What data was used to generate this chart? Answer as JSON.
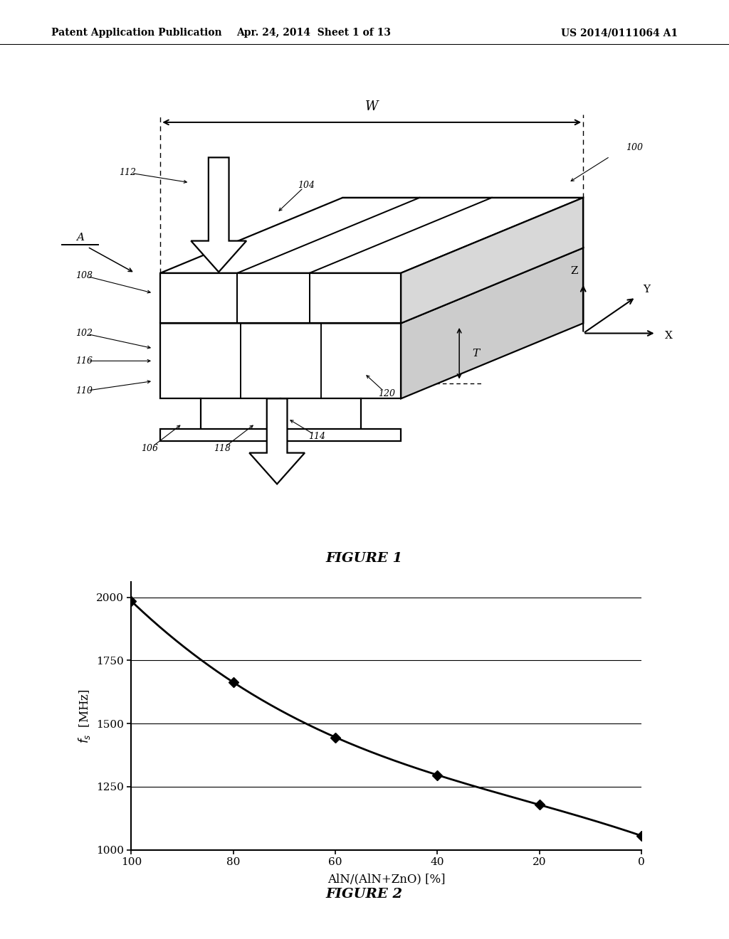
{
  "header_left": "Patent Application Publication",
  "header_center": "Apr. 24, 2014  Sheet 1 of 13",
  "header_right": "US 2014/0111064 A1",
  "figure1_caption": "FIGURE 1",
  "figure2_caption": "FIGURE 2",
  "graph_x": [
    100,
    80,
    60,
    40,
    20,
    0
  ],
  "graph_y": [
    1985,
    1665,
    1445,
    1295,
    1180,
    1055
  ],
  "graph_xlabel": "AlN/(AlN+ZnO) [%]",
  "graph_ylabel": "$f_s$  [MHz]",
  "graph_yticks": [
    1000,
    1250,
    1500,
    1750,
    2000
  ],
  "graph_xticks": [
    100,
    80,
    60,
    40,
    20,
    0
  ],
  "bg_color": "#ffffff"
}
